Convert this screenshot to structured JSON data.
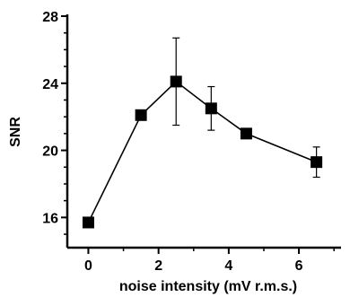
{
  "chart_data": {
    "type": "scatter",
    "xlabel": "noise intensity (mV r.m.s.)",
    "ylabel": "SNR",
    "xlim": [
      -0.6,
      7.2
    ],
    "ylim": [
      14.2,
      28
    ],
    "x_ticks": [
      0,
      2,
      4,
      6
    ],
    "y_ticks": [
      16,
      20,
      24,
      28
    ],
    "x_minor_step": 1,
    "y_minor_step": 1,
    "grid": false,
    "series": [
      {
        "x": [
          0,
          1.5,
          2.5,
          3.5,
          4.5,
          6.5
        ],
        "y": [
          15.7,
          22.1,
          24.1,
          22.5,
          21.0,
          19.3
        ],
        "err": [
          0.3,
          0.0,
          2.6,
          1.3,
          0.0,
          0.9
        ],
        "marker": "square",
        "line": "solid"
      }
    ]
  }
}
